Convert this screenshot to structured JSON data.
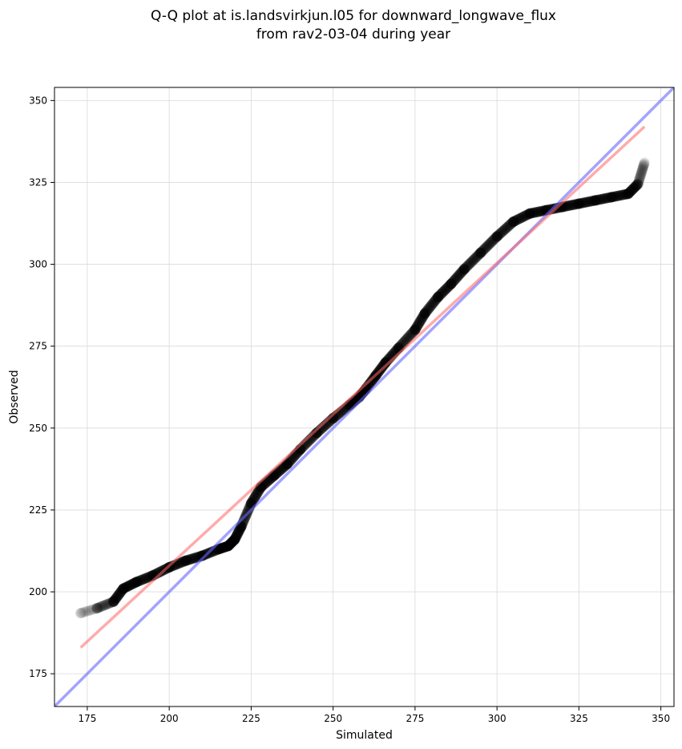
{
  "chart_data": {
    "type": "scatter",
    "title": [
      "Q-Q plot at is.landsvirkjun.l05 for downward_longwave_flux",
      "from rav2-03-04 during year"
    ],
    "xlabel": "Simulated",
    "ylabel": "Observed",
    "xlim": [
      165,
      354
    ],
    "ylim": [
      165,
      354
    ],
    "xticks": [
      175,
      200,
      225,
      250,
      275,
      300,
      325,
      350
    ],
    "yticks": [
      175,
      200,
      225,
      250,
      275,
      300,
      325,
      350
    ],
    "grid": true,
    "colors": {
      "points": "#000000",
      "fit_line": "#ff6666",
      "identity_line": "#6666ff"
    },
    "quantile_curve": {
      "x": [
        173,
        178,
        183,
        186,
        190,
        195,
        200,
        205,
        210,
        215,
        218,
        220,
        222,
        225,
        228,
        232,
        236,
        240,
        245,
        250,
        255,
        258,
        260,
        263,
        266,
        270,
        275,
        278,
        282,
        286,
        290,
        295,
        300,
        305,
        310,
        315,
        320,
        325,
        330,
        335,
        340,
        343,
        345
      ],
      "y": [
        193.5,
        195,
        197,
        201,
        203,
        205,
        207.5,
        209.5,
        211,
        213,
        214,
        216,
        220,
        227,
        232,
        235.5,
        239,
        243.5,
        248.5,
        253,
        257,
        259.5,
        262,
        266,
        270,
        274.5,
        280,
        285,
        290,
        294,
        298.5,
        303.5,
        308.5,
        313,
        315.5,
        316.5,
        317.5,
        318.5,
        319.5,
        320.5,
        321.5,
        324.5,
        331
      ]
    },
    "fit_line": {
      "x": [
        173,
        345
      ],
      "y": [
        183,
        342
      ]
    },
    "identity_line": {
      "x": [
        165,
        354
      ],
      "y": [
        165,
        354
      ]
    }
  }
}
